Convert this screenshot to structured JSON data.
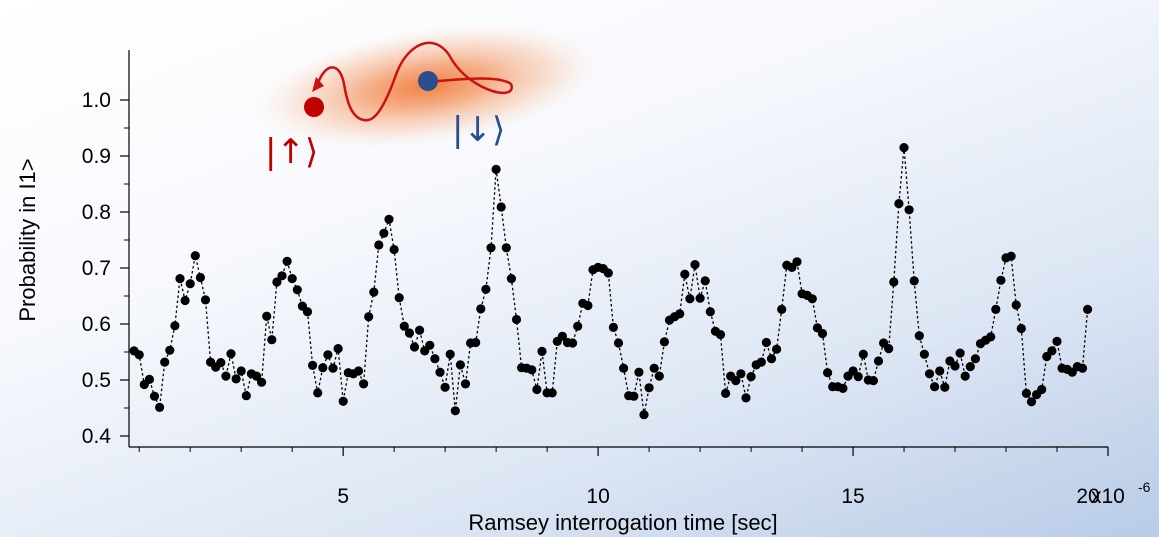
{
  "chart_data": {
    "type": "scatter",
    "title": "",
    "xlabel": "Ramsey interrogation time [sec]",
    "ylabel": "Probability in I1>",
    "x_multiplier_label": "x10",
    "x_multiplier_exp": "-6",
    "xlim": [
      0.8,
      20.0
    ],
    "ylim": [
      0.4,
      1.08
    ],
    "xticks": [
      5,
      10,
      15,
      20
    ],
    "xtick_labels": [
      "5",
      "10",
      "15",
      "20"
    ],
    "yticks": [
      0.4,
      0.5,
      0.6,
      0.7,
      0.8,
      0.9,
      1.0
    ],
    "ytick_labels": [
      "0.4",
      "0.5",
      "0.6",
      "0.7",
      "0.8",
      "0.9",
      "1.0"
    ],
    "grid": false,
    "line_style": "dotted",
    "marker_color": "#000000",
    "x_start": 0.9,
    "x_step": 0.1,
    "values": [
      0.552,
      0.545,
      0.492,
      0.501,
      0.471,
      0.451,
      0.532,
      0.553,
      0.597,
      0.681,
      0.642,
      0.672,
      0.722,
      0.683,
      0.643,
      0.532,
      0.523,
      0.531,
      0.507,
      0.547,
      0.502,
      0.516,
      0.472,
      0.511,
      0.507,
      0.496,
      0.614,
      0.572,
      0.675,
      0.686,
      0.712,
      0.681,
      0.661,
      0.632,
      0.622,
      0.526,
      0.477,
      0.522,
      0.545,
      0.521,
      0.556,
      0.462,
      0.513,
      0.511,
      0.516,
      0.493,
      0.613,
      0.657,
      0.741,
      0.762,
      0.787,
      0.733,
      0.647,
      0.596,
      0.584,
      0.559,
      0.589,
      0.552,
      0.562,
      0.538,
      0.514,
      0.487,
      0.546,
      0.445,
      0.527,
      0.493,
      0.566,
      0.567,
      0.627,
      0.662,
      0.736,
      0.876,
      0.809,
      0.736,
      0.681,
      0.608,
      0.522,
      0.521,
      0.518,
      0.483,
      0.551,
      0.477,
      0.477,
      0.569,
      0.578,
      0.567,
      0.566,
      0.596,
      0.637,
      0.633,
      0.697,
      0.701,
      0.699,
      0.691,
      0.594,
      0.566,
      0.521,
      0.472,
      0.471,
      0.514,
      0.438,
      0.486,
      0.521,
      0.507,
      0.568,
      0.607,
      0.613,
      0.618,
      0.689,
      0.645,
      0.706,
      0.646,
      0.677,
      0.622,
      0.587,
      0.581,
      0.476,
      0.507,
      0.499,
      0.511,
      0.468,
      0.506,
      0.527,
      0.532,
      0.567,
      0.538,
      0.555,
      0.626,
      0.705,
      0.701,
      0.711,
      0.654,
      0.651,
      0.645,
      0.593,
      0.583,
      0.513,
      0.488,
      0.488,
      0.485,
      0.507,
      0.516,
      0.506,
      0.546,
      0.5,
      0.499,
      0.534,
      0.566,
      0.556,
      0.675,
      0.815,
      0.915,
      0.804,
      0.677,
      0.579,
      0.546,
      0.511,
      0.488,
      0.516,
      0.487,
      0.534,
      0.525,
      0.548,
      0.507,
      0.524,
      0.538,
      0.565,
      0.571,
      0.577,
      0.626,
      0.678,
      0.718,
      0.721,
      0.634,
      0.592,
      0.476,
      0.461,
      0.474,
      0.483,
      0.542,
      0.552,
      0.569,
      0.521,
      0.519,
      0.514,
      0.524,
      0.521,
      0.626
    ]
  },
  "inset": {
    "up_label": "|↑⟩",
    "down_label": "|↓⟩",
    "up_color": "#c00000",
    "down_color": "#2a4f8a",
    "cloud_color": "#f07a3a",
    "path_color": "#cc1111"
  }
}
